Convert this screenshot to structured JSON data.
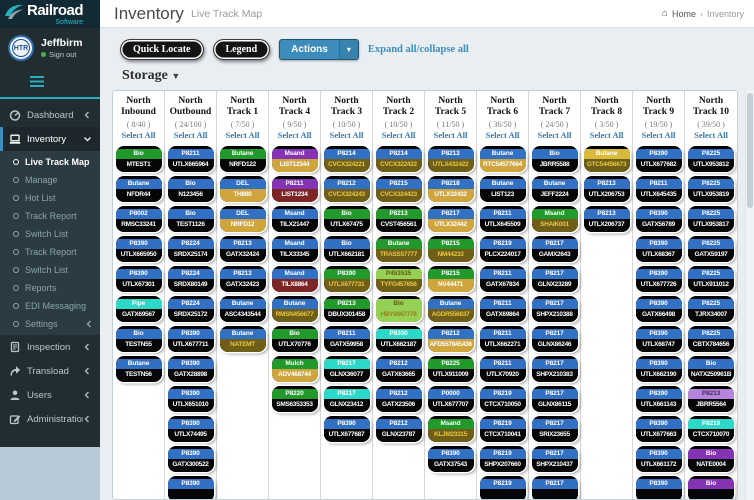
{
  "brand": {
    "name": "Railroad",
    "tagline": "Software"
  },
  "topbar": {
    "title": "Inventory",
    "subtitle": "Live Track Map",
    "breadcrumb": {
      "home": "Home",
      "separator": "›",
      "current": "Inventory"
    }
  },
  "user": {
    "name": "Jeffbirm",
    "status": "Sign out"
  },
  "sidebar": {
    "menu": [
      {
        "label": "Dashboard",
        "icon": "dashboard-icon",
        "state": "collapsed"
      },
      {
        "label": "Inventory",
        "icon": "inventory-icon",
        "state": "expanded",
        "active": true,
        "children": [
          {
            "label": "Live Track Map",
            "active": true
          },
          {
            "label": "Manage"
          },
          {
            "label": "Hot List"
          },
          {
            "label": "Track Report"
          },
          {
            "label": "Switch List"
          },
          {
            "label": "Track Report"
          },
          {
            "label": "Switch List"
          },
          {
            "label": "Reports"
          },
          {
            "label": "EDI Messaging"
          },
          {
            "label": "Settings",
            "state": "collapsed"
          }
        ]
      },
      {
        "label": "Inspection",
        "icon": "inspection-icon",
        "state": "collapsed"
      },
      {
        "label": "Transload",
        "icon": "transload-icon",
        "state": "collapsed"
      },
      {
        "label": "Users",
        "icon": "users-icon",
        "state": "collapsed"
      },
      {
        "label": "Administration",
        "icon": "administration-icon",
        "state": "collapsed"
      }
    ]
  },
  "toolbar": {
    "quick_locate": "Quick Locate",
    "legend": "Legend",
    "actions": "Actions",
    "expand_collapse": "Expand all/collapse all"
  },
  "storage": {
    "title": "Storage",
    "select_all_label": "Select All",
    "tracks": [
      {
        "name": "North Inbound",
        "count": "( 8/40 )",
        "cars": [
          [
            "Bio",
            "MTEST1",
            "green",
            "black"
          ],
          [
            "Butane",
            "NFDR44",
            "blue",
            "black"
          ],
          [
            "P8002",
            "RMSC33241",
            "blue",
            "black"
          ],
          [
            "P8390",
            "UTLX665950",
            "blue",
            "black"
          ],
          [
            "P8390",
            "UTLX67301",
            "blue",
            "black"
          ],
          [
            "Pipe",
            "GATX69567",
            "cyan",
            "black"
          ],
          [
            "Bio",
            "TESTN55",
            "blue",
            "black"
          ],
          [
            "Butane",
            "TESTN56",
            "blue",
            "black"
          ]
        ]
      },
      {
        "name": "North Outbound",
        "count": "( 24/100 )",
        "cars": [
          [
            "P8211",
            "UTLX665964",
            "blue",
            "black"
          ],
          [
            "Bio",
            "N123456",
            "blue",
            "black"
          ],
          [
            "Bio",
            "TEST1126",
            "blue",
            "black"
          ],
          [
            "P8224",
            "SRDX25174",
            "blue",
            "black"
          ],
          [
            "P8224",
            "SRDX80149",
            "blue",
            "black"
          ],
          [
            "P8224",
            "SRDX25172",
            "blue",
            "black"
          ],
          [
            "P8390",
            "UTLX677711",
            "blue",
            "black"
          ],
          [
            "P8390",
            "GATX28898",
            "blue",
            "black"
          ],
          [
            "P8390",
            "UTLX651010",
            "blue",
            "black"
          ],
          [
            "P8390",
            "UTLX74495",
            "blue",
            "black"
          ],
          [
            "P8390",
            "GATX300522",
            "blue",
            "black"
          ],
          [
            "P8390",
            "",
            "blue",
            "black"
          ]
        ]
      },
      {
        "name": "North Track 1",
        "count": "( 7/50 )",
        "cars": [
          [
            "Butane",
            "NRFD122",
            "green",
            "black"
          ],
          [
            "DEL",
            "TH890",
            "blue",
            "gold"
          ],
          [
            "DEL",
            "NRFD12",
            "blue",
            "gold"
          ],
          [
            "P8213",
            "GATX32424",
            "blue",
            "black"
          ],
          [
            "P8213",
            "GATX32423",
            "blue",
            "black"
          ],
          [
            "Butane",
            "ASC4343544",
            "blue",
            "black"
          ],
          [
            "Butane",
            "NATEMT",
            "blue",
            "olive"
          ]
        ]
      },
      {
        "name": "North Track 4",
        "count": "( 9/50 )",
        "cars": [
          [
            "Msand",
            "LIST12344",
            "purple",
            "gold"
          ],
          [
            "P8211",
            "LIST1234",
            "purple",
            "maroon"
          ],
          [
            "Msand",
            "TILX21447",
            "blue",
            "black"
          ],
          [
            "Msand",
            "TILX33345",
            "blue",
            "black"
          ],
          [
            "Msand",
            "TILX8864",
            "blue",
            "maroon"
          ],
          [
            "Butane",
            "RMSN456677",
            "blue",
            "olive"
          ],
          [
            "Bio",
            "UTLX70776",
            "green",
            "black"
          ],
          [
            "Mulch",
            "ADV468744",
            "green",
            "gold"
          ],
          [
            "P8220",
            "SMS6353353",
            "green",
            "black"
          ]
        ]
      },
      {
        "name": "North Track 3",
        "count": "( 10/50 )",
        "cars": [
          [
            "P8214",
            "CVCX324221",
            "blue",
            "olive"
          ],
          [
            "P8212",
            "CVCX324243",
            "blue",
            "olive"
          ],
          [
            "Bio",
            "UTLX67475",
            "green",
            "black"
          ],
          [
            "Bio",
            "UTLX662181",
            "blue",
            "black"
          ],
          [
            "P8390",
            "UTLX677731",
            "green",
            "olive"
          ],
          [
            "P8213",
            "DBUX301458",
            "green",
            "black"
          ],
          [
            "P8211",
            "GATX59958",
            "blue",
            "black"
          ],
          [
            "P8217",
            "GLNX36077",
            "cyan",
            "black"
          ],
          [
            "P8217",
            "GLNX23412",
            "cyan",
            "black"
          ],
          [
            "P8390",
            "UTLX677687",
            "blue",
            "black"
          ]
        ]
      },
      {
        "name": "North Track 2",
        "count": "( 10/50 )",
        "cars": [
          [
            "P8214",
            "CVCX322422",
            "blue",
            "olive"
          ],
          [
            "P8215",
            "CVCX324423",
            "blue",
            "olive"
          ],
          [
            "P8213",
            "CVST456561",
            "green",
            "black"
          ],
          [
            "Butane",
            "TRASS57777",
            "green",
            "olive"
          ],
          [
            "P453535",
            "TYFG457656",
            "lgreen",
            "olive"
          ],
          [
            "Bio",
            "HBY6667778",
            "lgreen",
            "lgreen"
          ],
          [
            "P8390",
            "UTLX662187",
            "cyan",
            "black"
          ],
          [
            "P8212",
            "GATX63665",
            "blue",
            "black"
          ],
          [
            "P8212",
            "GATX23506",
            "blue",
            "black"
          ],
          [
            "P8212",
            "GLNX23787",
            "blue",
            "black"
          ]
        ]
      },
      {
        "name": "North Track 5",
        "count": "( 11/50 )",
        "cars": [
          [
            "P8213",
            "UTLX432422",
            "blue",
            "olive"
          ],
          [
            "P8218",
            "UTLX32432",
            "blue",
            "gold"
          ],
          [
            "P8217",
            "UTLX32442",
            "blue",
            "gold"
          ],
          [
            "P8215",
            "NM44233",
            "green",
            "olive"
          ],
          [
            "P8215",
            "NV44471",
            "green",
            "gold"
          ],
          [
            "Butane",
            "AGDR556637",
            "blue",
            "olive"
          ],
          [
            "P8212",
            "AFD557845436",
            "blue",
            "gold"
          ],
          [
            "P8225",
            "UTLX911009",
            "green",
            "black"
          ],
          [
            "P0000",
            "UTLX677707",
            "blue",
            "black"
          ],
          [
            "Msand",
            "KLJM23315",
            "green",
            "olive"
          ],
          [
            "P8390",
            "GATX37543",
            "blue",
            "black"
          ]
        ]
      },
      {
        "name": "North Track 6",
        "count": "( 36/50 )",
        "cars": [
          [
            "Butane",
            "RTC54577664",
            "blue",
            "gold"
          ],
          [
            "Butane",
            "LIST123",
            "blue",
            "black"
          ],
          [
            "P8211",
            "UTLX645509",
            "blue",
            "black"
          ],
          [
            "P8219",
            "PLCX224017",
            "blue",
            "black"
          ],
          [
            "P8211",
            "GATX67834",
            "blue",
            "black"
          ],
          [
            "P8211",
            "GATX69864",
            "blue",
            "black"
          ],
          [
            "P8211",
            "UTLX662271",
            "blue",
            "black"
          ],
          [
            "P8211",
            "UTLX70920",
            "blue",
            "black"
          ],
          [
            "P8219",
            "CTCX710050",
            "blue",
            "black"
          ],
          [
            "P8219",
            "CTCX710041",
            "blue",
            "black"
          ],
          [
            "P8219",
            "SHPX207660",
            "blue",
            "black"
          ],
          [
            "P8219",
            "",
            "blue",
            "black"
          ]
        ]
      },
      {
        "name": "North Track 7",
        "count": "( 24/50 )",
        "cars": [
          [
            "Bio",
            "JBRR5588",
            "blue",
            "black"
          ],
          [
            "Butane",
            "JEFF2224",
            "blue",
            "black"
          ],
          [
            "Msand",
            "SHAIK001",
            "green",
            "olive"
          ],
          [
            "P8217",
            "GAMX2643",
            "blue",
            "black"
          ],
          [
            "P8217",
            "GLNX23289",
            "blue",
            "black"
          ],
          [
            "P8217",
            "SHPX210388",
            "blue",
            "black"
          ],
          [
            "P8217",
            "GLNX86246",
            "blue",
            "black"
          ],
          [
            "P8217",
            "SHPX210383",
            "blue",
            "black"
          ],
          [
            "P8217",
            "GLNX86115",
            "blue",
            "black"
          ],
          [
            "P8217",
            "SRIX23655",
            "blue",
            "black"
          ],
          [
            "P8217",
            "SHPX210437",
            "blue",
            "black"
          ],
          [
            "P8217",
            "",
            "blue",
            "black"
          ]
        ]
      },
      {
        "name": "North Track 8",
        "count": "( 3/50 )",
        "cars": [
          [
            "Butane",
            "GTC54456673",
            "gold",
            "olive"
          ],
          [
            "P8213",
            "UTLX206753",
            "blue",
            "black"
          ],
          [
            "P8213",
            "UTLX206737",
            "blue",
            "black"
          ]
        ]
      },
      {
        "name": "North Track 9",
        "count": "( 19/50 )",
        "cars": [
          [
            "P8390",
            "UTLX677682",
            "blue",
            "black"
          ],
          [
            "P8211",
            "UTLX645435",
            "blue",
            "black"
          ],
          [
            "P8390",
            "GATX56789",
            "blue",
            "black"
          ],
          [
            "P8390",
            "UTLX68367",
            "blue",
            "black"
          ],
          [
            "P8390",
            "UTLX677726",
            "blue",
            "black"
          ],
          [
            "P8390",
            "GATX66498",
            "blue",
            "black"
          ],
          [
            "P8390",
            "UTLX68747",
            "blue",
            "black"
          ],
          [
            "P8390",
            "UTLX662190",
            "blue",
            "black"
          ],
          [
            "P8390",
            "UTLX661143",
            "blue",
            "black"
          ],
          [
            "P8390",
            "UTLX677663",
            "blue",
            "black"
          ],
          [
            "P8390",
            "UTLX661172",
            "blue",
            "black"
          ],
          [
            "P8390",
            "",
            "blue",
            "black"
          ]
        ]
      },
      {
        "name": "North Track 10",
        "count": "( 39/50 )",
        "cars": [
          [
            "P8225",
            "UTLX953812",
            "blue",
            "black"
          ],
          [
            "P8225",
            "UTLX953819",
            "blue",
            "black"
          ],
          [
            "P8225",
            "UTLX953817",
            "blue",
            "black"
          ],
          [
            "P8225",
            "GATX59197",
            "blue",
            "black"
          ],
          [
            "P8225",
            "UTLX911012",
            "blue",
            "black"
          ],
          [
            "P8225",
            "TJRX34007",
            "blue",
            "black"
          ],
          [
            "P8225",
            "CBTX784656",
            "blue",
            "black"
          ],
          [
            "Bio",
            "NATX250961B",
            "blue",
            "black"
          ],
          [
            "P8213",
            "JBRR5564",
            "lpurple",
            "black"
          ],
          [
            "P8219",
            "CTCX710070",
            "cyan",
            "black"
          ],
          [
            "Bio",
            "NATE0004",
            "purple",
            "black"
          ],
          [
            "Bio",
            "",
            "purple",
            "black"
          ]
        ]
      }
    ]
  },
  "colors": {
    "accent": "#3c8dbc",
    "sidebar_bg": "#222d32",
    "band_blue": "#3170c2",
    "band_green": "#219a2b",
    "band_cyan": "#2bd9c8",
    "band_purple": "#8433b4",
    "band_light_purple": "#b584dc",
    "band_light_green": "#95d155",
    "band_gold": "#d8bb3d",
    "body_gold": "#cfa53d",
    "body_olive": "#6f5e18",
    "body_maroon": "#7d2424"
  }
}
